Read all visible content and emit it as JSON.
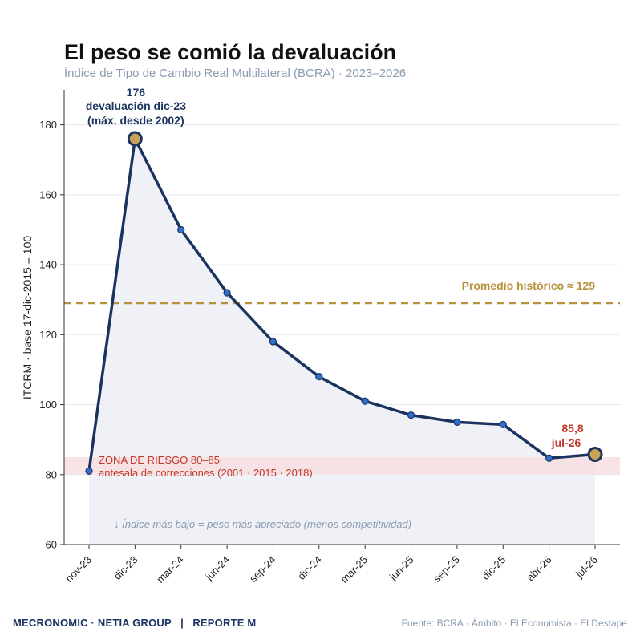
{
  "chart_data": {
    "type": "line",
    "title": "El peso se comió la devaluación",
    "subtitle": "Índice de Tipo de Cambio Real Multilateral (BCRA) · 2023–2026",
    "ylabel": "ITCRM · base 17-dic-2015 = 100",
    "xlabel": "",
    "ylim": [
      60,
      190
    ],
    "yticks": [
      60,
      80,
      100,
      120,
      140,
      160,
      180
    ],
    "grid": true,
    "categories": [
      "nov-23",
      "dic-23",
      "mar-24",
      "jun-24",
      "sep-24",
      "dic-24",
      "mar-25",
      "jun-25",
      "sep-25",
      "dic-25",
      "abr-26",
      "jul-26"
    ],
    "series": [
      {
        "values": [
          81,
          176,
          150,
          132,
          118,
          108,
          101,
          97,
          95,
          94.3,
          84.7,
          85.8
        ]
      }
    ],
    "highlight_points": [
      1,
      11
    ],
    "annotations": {
      "peak": [
        "176",
        "devaluación dic-23",
        "(máx. desde 2002)"
      ],
      "last": [
        "85,8",
        "jul-26"
      ]
    },
    "reference_line": {
      "value": 129,
      "label": "Promedio histórico ≈ 129"
    },
    "risk_zone": {
      "from": 80,
      "to": 85,
      "line1": "ZONA DE RIESGO 80–85",
      "line2": "antesala de correcciones (2001 · 2015 · 2018)"
    },
    "note": "↓ Índice más bajo = peso más apreciado (menos competitividad)"
  },
  "colors": {
    "line": "#1b3360",
    "point": "#2f6fd0",
    "highlight_point": "#c9a25a",
    "area": "#eef0f6",
    "zone": "#f7dfe0",
    "reference": "#b8903a"
  },
  "footer": {
    "left": "MECRONOMIC · NETIA GROUP   |   REPORTE M",
    "right": "Fuente: BCRA · Ámbito · El Economista · El Destape"
  }
}
